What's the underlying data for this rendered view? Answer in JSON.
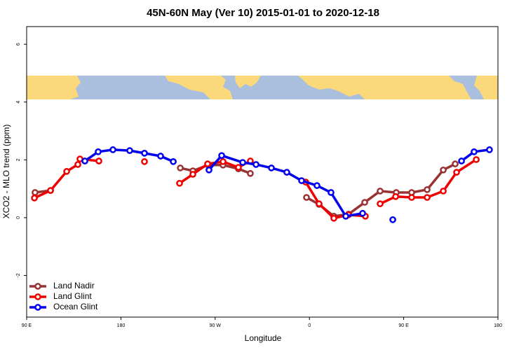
{
  "chart_data": {
    "type": "line",
    "title": "45N-60N May (Ver 10)   2015-01-01 to 2020-12-18",
    "x_label": "Longitude",
    "y_label": "XCO2 - MLO trend (ppm)",
    "xlim": [
      90,
      540
    ],
    "ylim": [
      -3.44,
      6.61
    ],
    "xticks": [
      {
        "value": 90,
        "label": "90 E"
      },
      {
        "value": 180,
        "label": "180"
      },
      {
        "value": 270,
        "label": "90 W"
      },
      {
        "value": 360,
        "label": "0"
      },
      {
        "value": 450,
        "label": "90 E"
      },
      {
        "value": 540,
        "label": "180"
      }
    ],
    "yticks": [
      -2,
      0,
      2,
      4,
      6
    ],
    "legend": "bottom-left",
    "series": [
      {
        "name": "Land Nadir",
        "color": "#993333",
        "x": [
          98,
          112.8,
          null,
          236.7,
          248.7,
          263.4,
          277.5,
          292.2,
          303.6,
          null,
          357.2,
          369.2,
          383.3,
          397.4,
          412.8,
          427.5,
          442.9,
          457.6,
          472.4,
          487.8,
          499.2
        ],
        "values": [
          0.87,
          0.94,
          null,
          1.72,
          1.62,
          1.82,
          1.82,
          1.69,
          1.53,
          null,
          0.7,
          0.46,
          0.05,
          0.12,
          0.53,
          0.92,
          0.87,
          0.87,
          0.97,
          1.65,
          1.86
        ]
      },
      {
        "name": "Land Glint",
        "color": "#ee0000",
        "x": [
          97.4,
          112.8,
          128.2,
          138.9,
          140.9,
          159,
          null,
          202.5,
          null,
          236,
          248.7,
          262.8,
          277.5,
          292.2,
          303.6,
          null,
          356.5,
          369.2,
          383.3,
          397.4,
          413.4,
          null,
          427.5,
          442.3,
          457.6,
          472.4,
          487.8,
          500.5,
          519.3
        ],
        "values": [
          0.68,
          0.94,
          1.6,
          1.84,
          2.03,
          1.96,
          null,
          1.94,
          null,
          1.19,
          1.5,
          1.86,
          1.94,
          1.74,
          1.96,
          null,
          1.23,
          0.48,
          -0.02,
          0.1,
          0.05,
          null,
          0.48,
          0.73,
          0.7,
          0.7,
          0.92,
          1.57,
          2.01
        ]
      },
      {
        "name": "Ocean Glint",
        "color": "#0000ee",
        "x": [
          145.6,
          158.3,
          172.4,
          188.4,
          202.5,
          217.9,
          230,
          null,
          264.1,
          276.2,
          296.3,
          309,
          323.7,
          338.4,
          352.5,
          367.2,
          380.6,
          394.7,
          410.8,
          null,
          439.6,
          null,
          505.2,
          517.2,
          531.9
        ],
        "values": [
          1.96,
          2.28,
          2.35,
          2.32,
          2.23,
          2.13,
          1.94,
          null,
          1.65,
          2.15,
          1.91,
          1.84,
          1.72,
          1.57,
          1.28,
          1.11,
          0.87,
          0.05,
          0.15,
          null,
          -0.07,
          null,
          1.96,
          2.28,
          2.35
        ]
      }
    ]
  }
}
